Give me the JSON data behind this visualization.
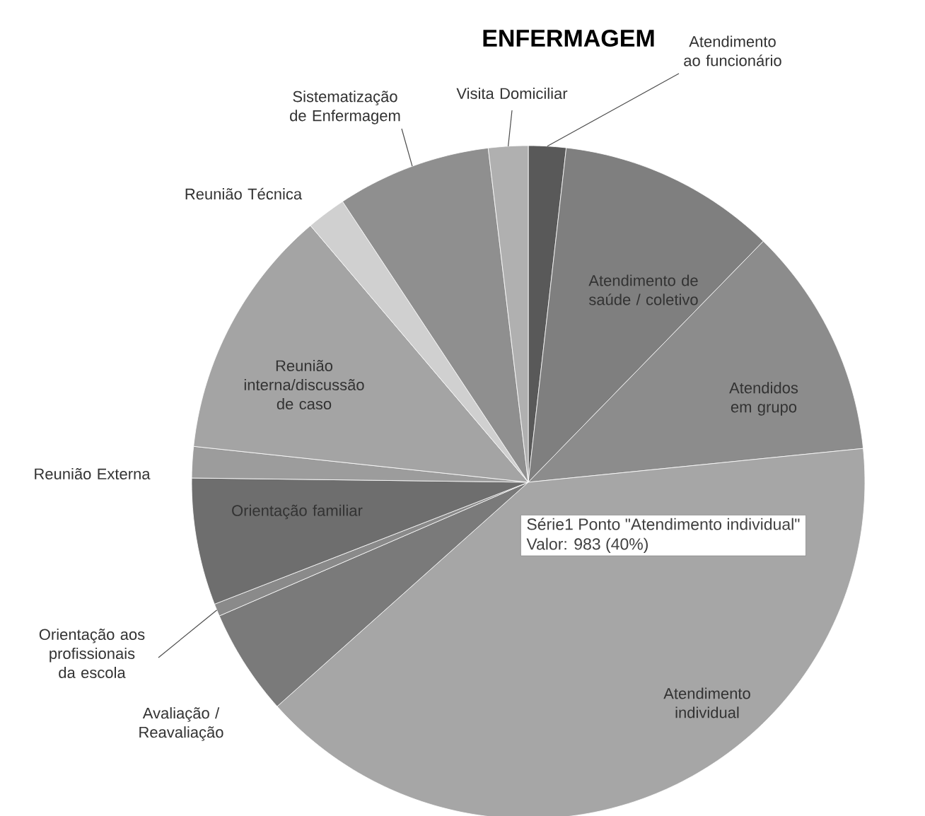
{
  "chart_data": {
    "type": "pie",
    "title": "ENFERMAGEM",
    "categories": [
      "Atendimento ao funcionário",
      "Atendimento de saúde / coletivo",
      "Atendidos em grupo",
      "Atendimento individual",
      "Avaliação / Reavaliação",
      "Orientação aos profissionais da escola",
      "Orientação familiar",
      "Reunião Externa",
      "Reunião interna/discussão de caso",
      "Reunião Técnica",
      "Sistematização de Enfermagem",
      "Visita Domiciliar"
    ],
    "values": [
      1.8,
      10.5,
      11.1,
      40,
      5.1,
      0.6,
      6.1,
      1.5,
      12.1,
      1.9,
      7.4,
      1.9
    ],
    "colors": [
      "#595959",
      "#7f7f7f",
      "#8c8c8c",
      "#a6a6a6",
      "#7a7a7a",
      "#8a8a8a",
      "#6e6e6e",
      "#9c9c9c",
      "#a4a4a4",
      "#d0d0d0",
      "#8f8f8f",
      "#b0b0b0"
    ],
    "annotations": [
      "Série1 Ponto \"Atendimento individual\"",
      "Valor: 983 (40%)"
    ]
  }
}
